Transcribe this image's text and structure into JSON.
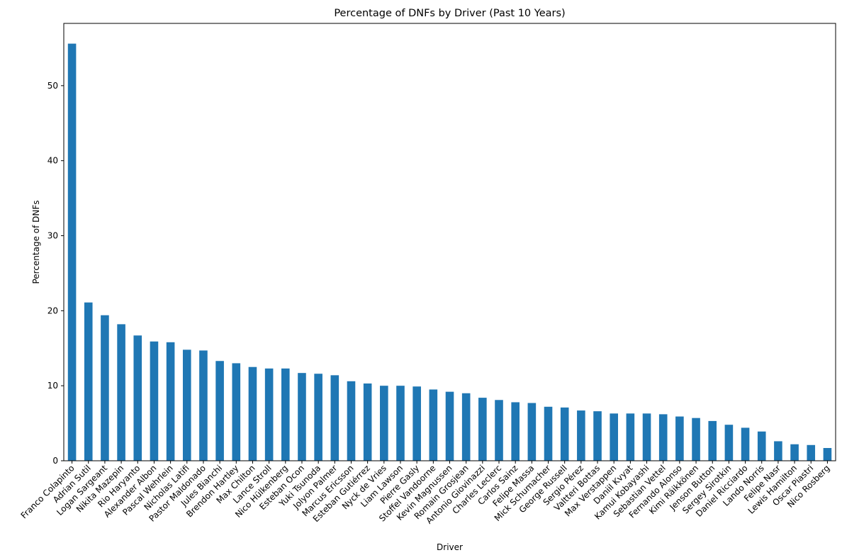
{
  "chart_data": {
    "type": "bar",
    "title": "Percentage of DNFs by Driver (Past 10 Years)",
    "xlabel": "Driver",
    "ylabel": "Percentage of DNFs",
    "ylim": [
      0,
      58.3
    ],
    "yticks": [
      0,
      10,
      20,
      30,
      40,
      50
    ],
    "grid": false,
    "bar_color": "#1f77b4",
    "categories": [
      "Franco Colapinto",
      "Adrian Sutil",
      "Logan Sargeant",
      "Nikita Mazepin",
      "Rio Haryanto",
      "Alexander Albon",
      "Pascal Wehrlein",
      "Nicholas Latifi",
      "Pastor Maldonado",
      "Jules Bianchi",
      "Brendon Hartley",
      "Max Chilton",
      "Lance Stroll",
      "Nico Hülkenberg",
      "Esteban Ocon",
      "Yuki Tsunoda",
      "Jolyon Palmer",
      "Marcus Ericsson",
      "Esteban Gutiérrez",
      "Nyck de Vries",
      "Liam Lawson",
      "Pierre Gasly",
      "Stoffel Vandoorne",
      "Kevin Magnussen",
      "Romain Grosjean",
      "Antonio Giovinazzi",
      "Charles Leclerc",
      "Carlos Sainz",
      "Felipe Massa",
      "Mick Schumacher",
      "George Russell",
      "Sergio Pérez",
      "Valtteri Bottas",
      "Max Verstappen",
      "Daniil Kvyat",
      "Kamui Kobayashi",
      "Sebastian Vettel",
      "Fernando Alonso",
      "Kimi Räikkönen",
      "Jenson Button",
      "Sergey Sirotkin",
      "Daniel Ricciardo",
      "Lando Norris",
      "Felipe Nasr",
      "Lewis Hamilton",
      "Oscar Piastri",
      "Nico Rosberg"
    ],
    "values": [
      55.6,
      21.1,
      19.4,
      18.2,
      16.7,
      15.9,
      15.8,
      14.8,
      14.7,
      13.3,
      13.0,
      12.5,
      12.3,
      12.3,
      11.7,
      11.6,
      11.4,
      10.6,
      10.3,
      10.0,
      10.0,
      9.9,
      9.5,
      9.2,
      9.0,
      8.4,
      8.1,
      7.8,
      7.7,
      7.2,
      7.1,
      6.7,
      6.6,
      6.3,
      6.3,
      6.3,
      6.2,
      5.9,
      5.7,
      5.3,
      4.8,
      4.4,
      3.9,
      2.6,
      2.2,
      2.1,
      1.7
    ]
  }
}
